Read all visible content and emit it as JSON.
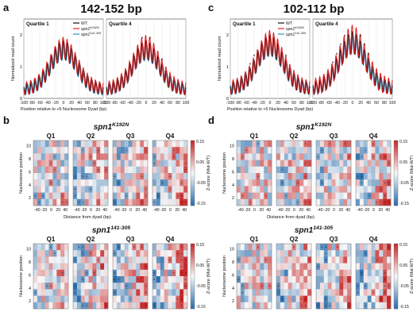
{
  "panels": {
    "a": "a",
    "b": "b",
    "c": "c",
    "d": "d",
    "a_title": "142-152 bp",
    "c_title": "102-112 bp"
  },
  "line_plots": {
    "ylabel": "Normalized read count",
    "xlabel": "Position relative to +5 Nucleosome Dyad (bp)",
    "xticks": [
      "-100",
      "-80",
      "-60",
      "-40",
      "-20",
      "0",
      "20",
      "40",
      "60",
      "80",
      "100"
    ],
    "yticks": [
      "0",
      "1",
      "2"
    ],
    "q1_title": "Quartile 1",
    "q4_title": "Quartile 4",
    "colors": {
      "WT": "#111111",
      "K192N": "#e02020",
      "d141_305": "#2a8fc8"
    }
  },
  "legend": {
    "wt": "WT",
    "k192n_base": "spn1",
    "k192n_sup": "K192N",
    "d_base": "spn1",
    "d_sup": "141-305"
  },
  "heatmaps": {
    "titles": {
      "k192n_base": "spn1",
      "k192n_sup": "K192N",
      "d_base": "spn1",
      "d_sup": "141-305"
    },
    "quartiles": [
      "Q1",
      "Q2",
      "Q3",
      "Q4"
    ],
    "ylabel": "Nucleosome position",
    "yticks": [
      "2",
      "4",
      "6",
      "8",
      "10"
    ],
    "xlabel": "Distance from dyad (bp)",
    "xticks": [
      "-40",
      "-20",
      "0",
      "20",
      "40"
    ],
    "cbar_label": "Z-score (Mut-WT)",
    "cbar_ticks": [
      "0.15",
      "0.05",
      "-0.05",
      "-0.15"
    ],
    "colors": {
      "neg": "#2b6fad",
      "mid": "#f7f7f7",
      "pos": "#c62828"
    }
  },
  "chart_data": [
    {
      "type": "line",
      "panel": "a",
      "title": "Quartile 1",
      "xlabel": "Position relative to +5 Nucleosome Dyad (bp)",
      "ylabel": "Normalized read count",
      "xlim": [
        -100,
        100
      ],
      "ylim": [
        0,
        2.5
      ],
      "series": [
        {
          "name": "WT"
        },
        {
          "name": "spn1 K192N"
        },
        {
          "name": "spn1 141-305"
        }
      ]
    },
    {
      "type": "line",
      "panel": "a",
      "title": "Quartile 4",
      "xlim": [
        -100,
        100
      ],
      "ylim": [
        0,
        2.5
      ],
      "series": [
        {
          "name": "WT"
        },
        {
          "name": "spn1 K192N"
        },
        {
          "name": "spn1 141-305"
        }
      ]
    },
    {
      "type": "line",
      "panel": "c",
      "title": "Quartile 1",
      "xlim": [
        -100,
        100
      ],
      "ylim": [
        0,
        2.5
      ],
      "series": [
        {
          "name": "WT"
        },
        {
          "name": "spn1 K192N"
        },
        {
          "name": "spn1 141-305"
        }
      ]
    },
    {
      "type": "line",
      "panel": "c",
      "title": "Quartile 4",
      "xlim": [
        -100,
        100
      ],
      "ylim": [
        0,
        2.5
      ],
      "series": [
        {
          "name": "WT"
        },
        {
          "name": "spn1 K192N"
        },
        {
          "name": "spn1 141-305"
        }
      ]
    },
    {
      "type": "heatmap",
      "panel": "b/d",
      "title": "spn1 K192N / spn1 141-305",
      "x": [
        "-40",
        "-20",
        "0",
        "20",
        "40"
      ],
      "y": [
        "2",
        "4",
        "6",
        "8",
        "10"
      ],
      "zlabel": "Z-score (Mut-WT)",
      "zlim": [
        -0.15,
        0.15
      ]
    }
  ]
}
